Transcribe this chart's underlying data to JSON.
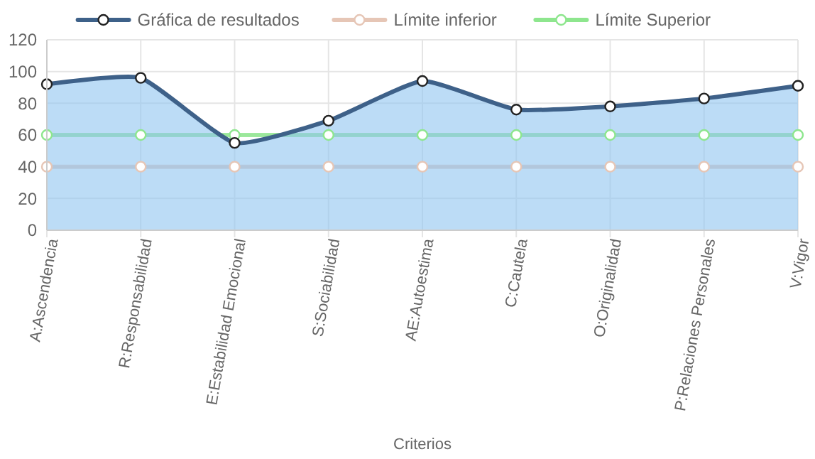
{
  "chart_data": {
    "type": "line",
    "xlabel": "Criterios",
    "categories": [
      "A:Ascendencia",
      "R:Responsabilidad",
      "E:Estabilidad Emocional",
      "S:Sociabilidad",
      "AE:Autoestima",
      "C:Cautela",
      "O:Originalidad",
      "P:Relaciones Personales",
      "V:Vigor"
    ],
    "series": [
      {
        "name": "Gráfica de resultados",
        "type": "area",
        "color": "#3e6189",
        "values": [
          92,
          96,
          55,
          69,
          94,
          76,
          78,
          83,
          91
        ]
      },
      {
        "name": "Límite inferior",
        "type": "line",
        "color": "#e6c6b6",
        "values": [
          40,
          40,
          40,
          40,
          40,
          40,
          40,
          40,
          40
        ]
      },
      {
        "name": "Límite Superior",
        "type": "line",
        "color": "#8ee68e",
        "values": [
          60,
          60,
          60,
          60,
          60,
          60,
          60,
          60,
          60
        ]
      }
    ],
    "ylim": [
      0,
      120
    ],
    "yticks": [
      0,
      20,
      40,
      60,
      80,
      100,
      120
    ],
    "grid": true,
    "legend": "top",
    "marker": "circle",
    "line_style": "solid"
  }
}
